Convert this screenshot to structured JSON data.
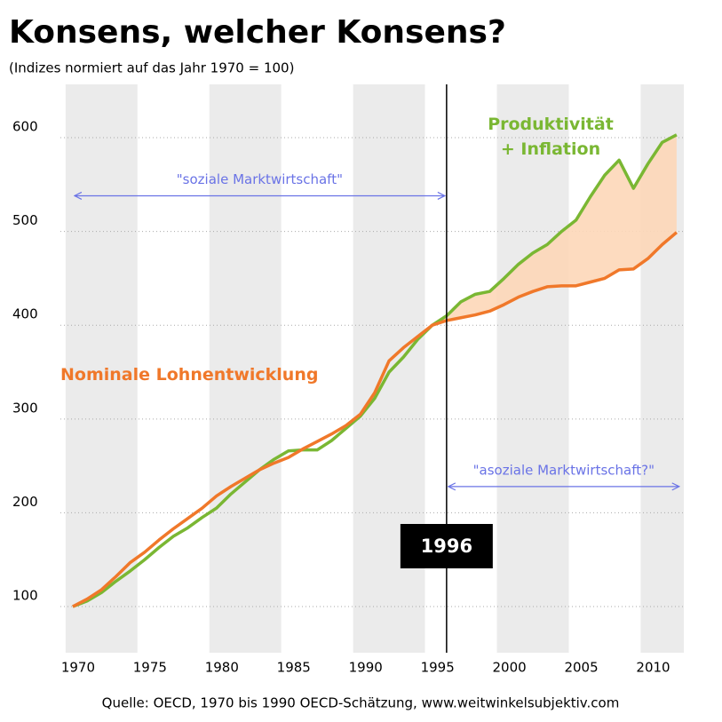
{
  "chart_data": {
    "type": "line",
    "title": "Konsens, welcher Konsens?",
    "subtitle": "(Indizes normiert auf das Jahr 1970 = 100)",
    "source": "Quelle: OECD, 1970 bis 1990 OECD-Schätzung, www.weitwinkelsubjektiv.com",
    "x": [
      1970,
      1971,
      1972,
      1973,
      1974,
      1975,
      1976,
      1977,
      1978,
      1979,
      1980,
      1981,
      1982,
      1983,
      1984,
      1985,
      1986,
      1987,
      1988,
      1989,
      1990,
      1991,
      1992,
      1993,
      1994,
      1995,
      1996,
      1997,
      1998,
      1999,
      2000,
      2001,
      2002,
      2003,
      2004,
      2005,
      2006,
      2007,
      2008,
      2009,
      2010,
      2011,
      2012
    ],
    "series": [
      {
        "name": "Produktivität\n+ Inflation",
        "color": "#7ab733",
        "values": [
          100,
          106,
          115,
          127,
          138,
          150,
          163,
          175,
          184,
          195,
          205,
          220,
          233,
          246,
          257,
          266,
          267,
          267,
          277,
          290,
          303,
          322,
          350,
          366,
          385,
          400,
          410,
          425,
          433,
          436,
          450,
          465,
          477,
          486,
          500,
          512,
          537,
          560,
          576,
          546,
          572,
          595,
          603
        ]
      },
      {
        "name": "Nominale Lohnentwicklung",
        "color": "#f0782a",
        "values": [
          100,
          108,
          118,
          132,
          147,
          158,
          171,
          183,
          194,
          205,
          218,
          228,
          237,
          246,
          253,
          259,
          268,
          276,
          284,
          293,
          305,
          328,
          362,
          376,
          388,
          400,
          405,
          408,
          411,
          415,
          422,
          430,
          436,
          441,
          442,
          442,
          446,
          450,
          459,
          460,
          471,
          486,
          499
        ]
      }
    ],
    "xlim": [
      1969.14,
      2012.5
    ],
    "ylim": [
      50.8,
      656.8
    ],
    "xticks": [
      1970,
      1975,
      1980,
      1985,
      1990,
      1995,
      2000,
      2005,
      2010
    ],
    "yticks": [
      100,
      200,
      300,
      400,
      500,
      600
    ],
    "grid": true,
    "marker_line": {
      "x": 1996,
      "label": "1996"
    },
    "annotations": [
      {
        "text": "\"soziale Marktwirtschaft\"",
        "from": 1970,
        "to": 1996,
        "y": 538
      },
      {
        "text": "\"asoziale Marktwirtschaft?\"",
        "from": 1996,
        "to": 2012.3,
        "y": 228
      }
    ]
  }
}
